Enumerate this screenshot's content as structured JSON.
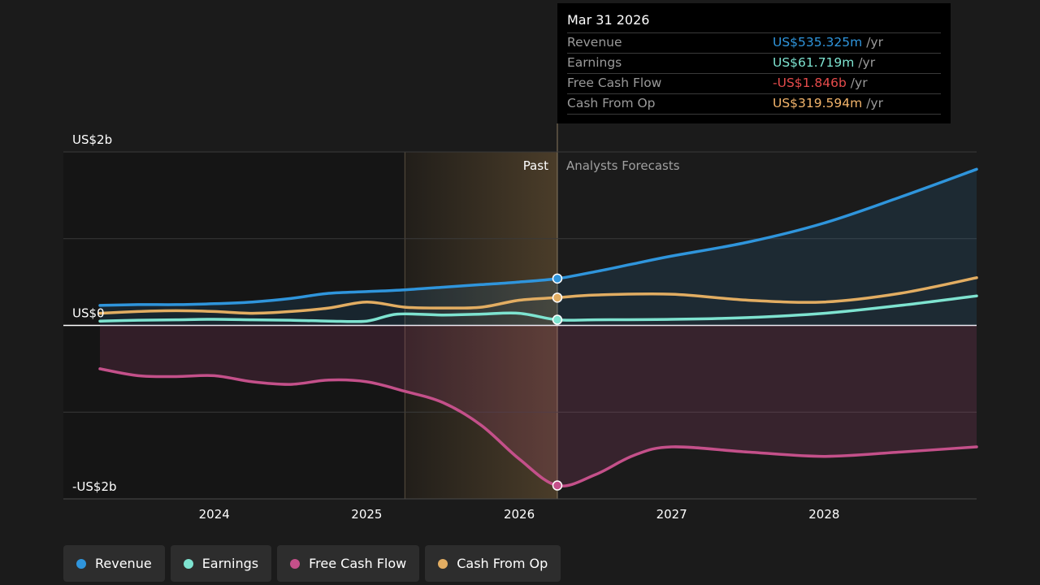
{
  "tooltip": {
    "date": "Mar 31 2026",
    "rows": [
      {
        "label": "Revenue",
        "value": "US$535.325m",
        "unit": "/yr",
        "color": "#2f95dc"
      },
      {
        "label": "Earnings",
        "value": "US$61.719m",
        "unit": "/yr",
        "color": "#7ee3d0"
      },
      {
        "label": "Free Cash Flow",
        "value": "-US$1.846b",
        "unit": "/yr",
        "color": "#e64b4b"
      },
      {
        "label": "Cash From Op",
        "value": "US$319.594m",
        "unit": "/yr",
        "color": "#f2b46b"
      }
    ]
  },
  "legend": [
    {
      "label": "Revenue",
      "color": "#2f95dc"
    },
    {
      "label": "Earnings",
      "color": "#7ee3d0"
    },
    {
      "label": "Free Cash Flow",
      "color": "#c4508a"
    },
    {
      "label": "Cash From Op",
      "color": "#e2ad62"
    }
  ],
  "chart_data": {
    "type": "line",
    "y_tick_labels": [
      "US$2b",
      "US$0",
      "-US$2b"
    ],
    "ylim": [
      -2,
      2
    ],
    "y_unit": "billions USD",
    "x_ticks": [
      2024,
      2025,
      2026,
      2027,
      2028
    ],
    "xlim": [
      2023.25,
      2029.0
    ],
    "past_label": "Past",
    "forecast_label": "Analysts Forecasts",
    "past_region_start": 2025.25,
    "current_date": 2026.25,
    "grid": true,
    "series": [
      {
        "name": "Revenue",
        "color": "#2f95dc",
        "x": [
          2023.25,
          2023.5,
          2023.75,
          2024.0,
          2024.25,
          2024.5,
          2024.75,
          2025.0,
          2025.25,
          2025.5,
          2025.75,
          2026.0,
          2026.25,
          2026.5,
          2026.75,
          2027.0,
          2027.5,
          2028.0,
          2028.5,
          2029.0
        ],
        "values": [
          0.23,
          0.24,
          0.24,
          0.25,
          0.27,
          0.31,
          0.37,
          0.39,
          0.41,
          0.44,
          0.47,
          0.5,
          0.54,
          0.62,
          0.71,
          0.8,
          0.96,
          1.18,
          1.48,
          1.8
        ]
      },
      {
        "name": "Earnings",
        "color": "#7ee3d0",
        "x": [
          2023.25,
          2023.5,
          2023.75,
          2024.0,
          2024.25,
          2024.5,
          2024.75,
          2025.0,
          2025.2,
          2025.5,
          2025.75,
          2026.0,
          2026.25,
          2026.5,
          2027.0,
          2027.5,
          2028.0,
          2028.5,
          2029.0
        ],
        "values": [
          0.05,
          0.06,
          0.065,
          0.07,
          0.065,
          0.06,
          0.05,
          0.05,
          0.13,
          0.12,
          0.13,
          0.14,
          0.065,
          0.065,
          0.07,
          0.09,
          0.14,
          0.23,
          0.34
        ]
      },
      {
        "name": "Free Cash Flow",
        "color": "#c4508a",
        "x": [
          2023.25,
          2023.5,
          2023.75,
          2024.0,
          2024.25,
          2024.5,
          2024.75,
          2025.0,
          2025.25,
          2025.5,
          2025.75,
          2026.0,
          2026.25,
          2026.5,
          2026.75,
          2027.0,
          2027.5,
          2028.0,
          2028.5,
          2029.0
        ],
        "values": [
          -0.5,
          -0.58,
          -0.59,
          -0.58,
          -0.65,
          -0.68,
          -0.63,
          -0.65,
          -0.76,
          -0.89,
          -1.15,
          -1.54,
          -1.846,
          -1.72,
          -1.5,
          -1.4,
          -1.46,
          -1.51,
          -1.46,
          -1.4
        ]
      },
      {
        "name": "Cash From Op",
        "color": "#e2ad62",
        "x": [
          2023.25,
          2023.5,
          2023.75,
          2024.0,
          2024.25,
          2024.5,
          2024.75,
          2025.0,
          2025.25,
          2025.5,
          2025.75,
          2026.0,
          2026.25,
          2026.5,
          2027.0,
          2027.5,
          2028.0,
          2028.5,
          2029.0
        ],
        "values": [
          0.14,
          0.16,
          0.17,
          0.16,
          0.14,
          0.16,
          0.2,
          0.27,
          0.21,
          0.2,
          0.21,
          0.29,
          0.32,
          0.35,
          0.36,
          0.29,
          0.27,
          0.37,
          0.55
        ]
      }
    ]
  }
}
